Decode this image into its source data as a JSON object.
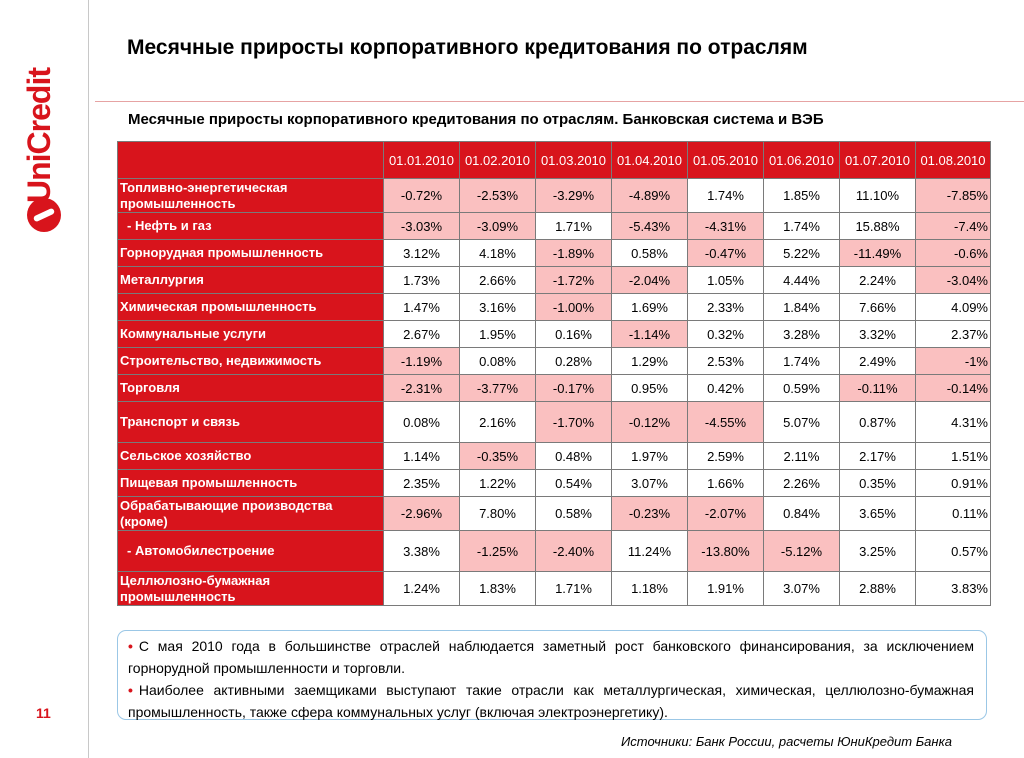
{
  "brand": {
    "name": "UniCredit",
    "color": "#d8141c"
  },
  "page_number": "11",
  "title": "Месячные приросты корпоративного кредитования по отраслям",
  "subtitle": "Месячные приросты корпоративного кредитования по отраслям. Банковская система и ВЭБ",
  "table": {
    "columns": [
      "01.01.2010",
      "01.02.2010",
      "01.03.2010",
      "01.04.2010",
      "01.05.2010",
      "01.06.2010",
      "01.07.2010",
      "01.08.2010"
    ],
    "rows": [
      {
        "label": "Топливно-энергетическая промышленность",
        "values": [
          "-0.72%",
          "-2.53%",
          "-3.29%",
          "-4.89%",
          "1.74%",
          "1.85%",
          "11.10%",
          "-7.85%"
        ]
      },
      {
        "label": "- Нефть и газ",
        "values": [
          "-3.03%",
          "-3.09%",
          "1.71%",
          "-5.43%",
          "-4.31%",
          "1.74%",
          "15.88%",
          "-7.4%"
        ]
      },
      {
        "label": "Горнорудная промышленность",
        "values": [
          "3.12%",
          "4.18%",
          "-1.89%",
          "0.58%",
          "-0.47%",
          "5.22%",
          "-11.49%",
          "-0.6%"
        ]
      },
      {
        "label": "Металлургия",
        "values": [
          "1.73%",
          "2.66%",
          "-1.72%",
          "-2.04%",
          "1.05%",
          "4.44%",
          "2.24%",
          "-3.04%"
        ]
      },
      {
        "label": "Химическая промышленность",
        "values": [
          "1.47%",
          "3.16%",
          "-1.00%",
          "1.69%",
          "2.33%",
          "1.84%",
          "7.66%",
          "4.09%"
        ]
      },
      {
        "label": "Коммунальные услуги",
        "values": [
          "2.67%",
          "1.95%",
          "0.16%",
          "-1.14%",
          "0.32%",
          "3.28%",
          "3.32%",
          "2.37%"
        ]
      },
      {
        "label": "Строительство, недвижимость",
        "values": [
          "-1.19%",
          "0.08%",
          "0.28%",
          "1.29%",
          "2.53%",
          "1.74%",
          "2.49%",
          "-1%"
        ]
      },
      {
        "label": "Торговля",
        "values": [
          "-2.31%",
          "-3.77%",
          "-0.17%",
          "0.95%",
          "0.42%",
          "0.59%",
          "-0.11%",
          "-0.14%"
        ]
      },
      {
        "label": "Транспорт и связь",
        "values": [
          "0.08%",
          "2.16%",
          "-1.70%",
          "-0.12%",
          "-4.55%",
          "5.07%",
          "0.87%",
          "4.31%"
        ]
      },
      {
        "label": "Сельское хозяйство",
        "values": [
          "1.14%",
          "-0.35%",
          "0.48%",
          "1.97%",
          "2.59%",
          "2.11%",
          "2.17%",
          "1.51%"
        ]
      },
      {
        "label": "Пищевая промышленность",
        "values": [
          "2.35%",
          "1.22%",
          "0.54%",
          "3.07%",
          "1.66%",
          "2.26%",
          "0.35%",
          "0.91%"
        ]
      },
      {
        "label": "Обрабатывающие производства (кроме)",
        "values": [
          "-2.96%",
          "7.80%",
          "0.58%",
          "-0.23%",
          "-2.07%",
          "0.84%",
          "3.65%",
          "0.11%"
        ]
      },
      {
        "label": "- Автомобилестроение",
        "values": [
          "3.38%",
          "-1.25%",
          "-2.40%",
          "11.24%",
          "-13.80%",
          "-5.12%",
          "3.25%",
          "0.57%"
        ]
      },
      {
        "label": "Целлюлозно-бумажная промышленность",
        "values": [
          "1.24%",
          "1.83%",
          "1.71%",
          "1.18%",
          "1.91%",
          "3.07%",
          "2.88%",
          "3.83%"
        ]
      }
    ],
    "header_color": "#d8141c",
    "negative_cell_color": "#fac0c0"
  },
  "notes": [
    "С мая 2010 года в большинстве отраслей наблюдается заметный рост банковского финансирования, за исключением горнорудной промышленности и торговли.",
    "Наиболее активными заемщиками выступают такие отрасли как металлургическая, химическая, целлюлозно-бумажная промышленность, также сфера коммунальных услуг (включая электроэнергетику)."
  ],
  "source": "Источники: Банк России, расчеты ЮниКредит Банка"
}
